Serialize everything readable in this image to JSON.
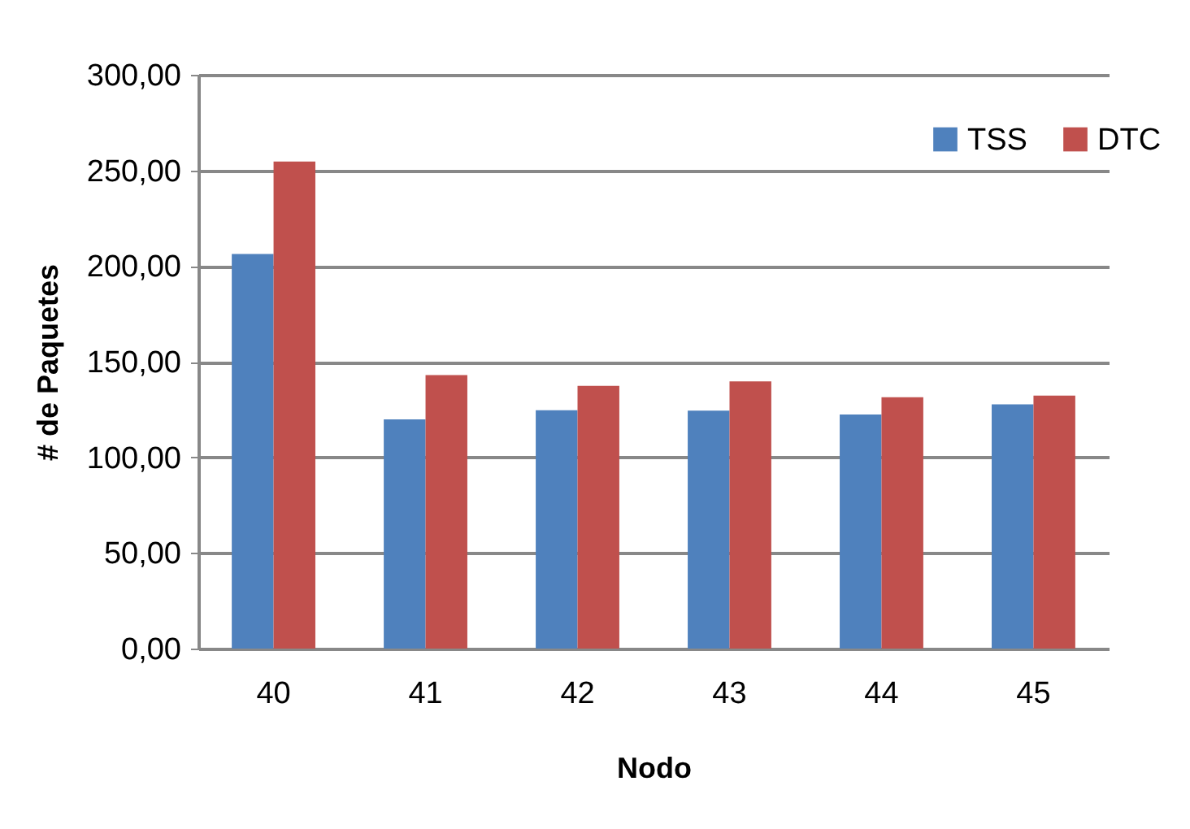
{
  "chart_data": {
    "type": "bar",
    "xlabel": "Nodo",
    "ylabel": "# de Paquetes",
    "categories": [
      "40",
      "41",
      "42",
      "43",
      "44",
      "45"
    ],
    "series": [
      {
        "name": "TSS",
        "color": "#4f81bd",
        "values": [
          206.3,
          119.8,
          124.6,
          124.4,
          122.4,
          127.7
        ]
      },
      {
        "name": "DTC",
        "color": "#c0504d",
        "values": [
          254.6,
          143.0,
          137.4,
          139.7,
          131.4,
          132.3
        ]
      }
    ],
    "ylim": [
      0,
      300
    ],
    "yticks": [
      {
        "value": 0,
        "label": "0,00"
      },
      {
        "value": 50,
        "label": "50,00"
      },
      {
        "value": 100,
        "label": "100,00"
      },
      {
        "value": 150,
        "label": "150,00"
      },
      {
        "value": 200,
        "label": "200,00"
      },
      {
        "value": 250,
        "label": "250,00"
      },
      {
        "value": 300,
        "label": "300,00"
      }
    ],
    "grid": "y",
    "legend": "top right"
  }
}
